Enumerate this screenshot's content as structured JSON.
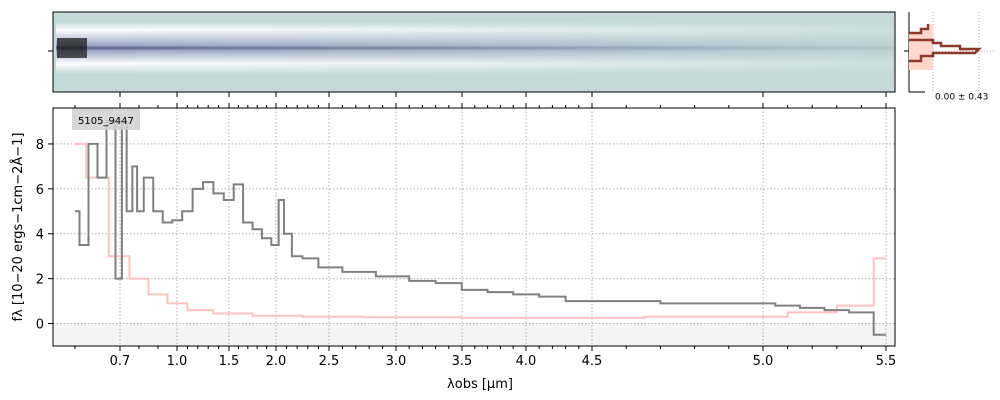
{
  "chart_data": [
    {
      "type": "heatmap",
      "panel": "2D spectrum",
      "colormap": "white-teal-dark purple",
      "background_color": "#c4dad8"
    },
    {
      "type": "line",
      "panel": "trace profile histogram",
      "annotation": "0.00 ± 0.43",
      "colors": {
        "profile": "#8b3a2a",
        "fill": "#ffd7cc"
      }
    },
    {
      "type": "line",
      "label": "5105_9447",
      "xlabel": "λobs [µm]",
      "ylabel": "fλ [10−20 ergs−1cm−2Å−1]",
      "xticks": [
        0.7,
        1.0,
        1.5,
        2.0,
        2.5,
        3.0,
        3.5,
        4.0,
        4.5,
        5.0,
        5.5
      ],
      "xtick_labels": [
        "0.7",
        "1.0",
        "1.5",
        "2.0",
        "2.5",
        "3.0",
        "3.5",
        "4.0",
        "4.5",
        "5.0",
        "5.5"
      ],
      "yticks": [
        0,
        2,
        4,
        6,
        8
      ],
      "ytick_labels": [
        "0",
        "2",
        "4",
        "6",
        "8"
      ],
      "xlim": [
        0.58,
        5.52
      ],
      "ylim": [
        -1.0,
        9.6
      ],
      "grid": true,
      "series": [
        {
          "role": "flux",
          "color": "#808080",
          "x": [
            0.6,
            0.62,
            0.64,
            0.66,
            0.68,
            0.7,
            0.72,
            0.75,
            0.78,
            0.8,
            0.85,
            0.9,
            0.95,
            1.0,
            1.1,
            1.2,
            1.3,
            1.4,
            1.5,
            1.6,
            1.7,
            1.8,
            1.9,
            2.0,
            2.05,
            2.1,
            2.2,
            2.3,
            2.5,
            2.7,
            3.0,
            3.2,
            3.4,
            3.6,
            3.8,
            4.0,
            4.2,
            4.4,
            4.6,
            4.8,
            5.0,
            5.1,
            5.2,
            5.3,
            5.4,
            5.5
          ],
          "y": [
            5,
            3.5,
            8,
            6.5,
            9,
            2,
            9,
            5,
            7,
            5,
            6.5,
            5,
            4.5,
            4.6,
            5,
            6,
            6.3,
            5.8,
            5.5,
            6.2,
            4.5,
            4.2,
            3.8,
            3.5,
            5.5,
            4,
            3,
            2.9,
            2.5,
            2.3,
            2.1,
            1.9,
            1.8,
            1.5,
            1.4,
            1.3,
            1.2,
            1.0,
            1.0,
            0.9,
            0.9,
            0.8,
            0.7,
            0.6,
            0.5,
            -0.5
          ]
        },
        {
          "role": "error",
          "color": "#ffbbbb",
          "x": [
            0.6,
            0.65,
            0.7,
            0.8,
            0.9,
            1.0,
            1.2,
            1.5,
            2.0,
            2.5,
            3.0,
            4.0,
            5.0,
            5.2,
            5.4,
            5.5
          ],
          "y": [
            8,
            6.5,
            3,
            2,
            1.3,
            0.9,
            0.6,
            0.45,
            0.35,
            0.3,
            0.28,
            0.25,
            0.3,
            0.5,
            0.8,
            2.9
          ]
        }
      ]
    }
  ]
}
